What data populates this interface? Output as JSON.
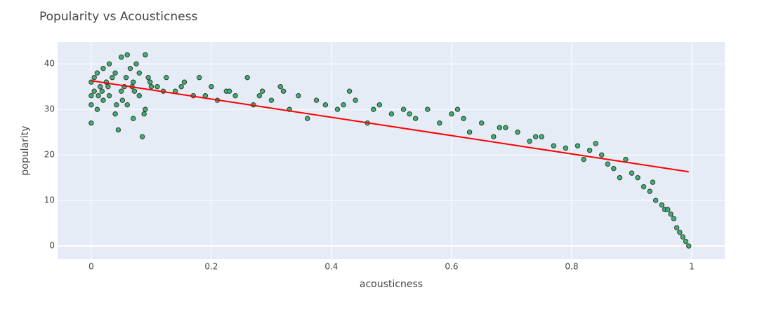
{
  "chart_data": {
    "type": "scatter",
    "title": "Popularity vs Acousticness",
    "x_label": "acousticness",
    "y_label": "popularity",
    "xlim": [
      -0.056,
      1.055
    ],
    "ylim": [
      -2.9,
      44.8
    ],
    "xticks": [
      0,
      0.2,
      0.4,
      0.6,
      0.8,
      1
    ],
    "yticks": [
      0,
      10,
      20,
      30,
      40
    ],
    "grid": true,
    "series": [
      {
        "type": "scatter",
        "color": "#3cb371",
        "x": [
          0,
          0,
          0,
          0,
          0.005,
          0.005,
          0.01,
          0.01,
          0.015,
          0.02,
          0.02,
          0.025,
          0.03,
          0.03,
          0.035,
          0.04,
          0.04,
          0.045,
          0.05,
          0.05,
          0.055,
          0.06,
          0.06,
          0.065,
          0.07,
          0.07,
          0.075,
          0.08,
          0.08,
          0.085,
          0.09,
          0.09,
          0.095,
          0.1,
          0.012,
          0.028,
          0.042,
          0.058,
          0.072,
          0.088,
          0.098,
          0.018,
          0.052,
          0.068,
          0.11,
          0.125,
          0.14,
          0.155,
          0.17,
          0.18,
          0.2,
          0.21,
          0.225,
          0.24,
          0.26,
          0.27,
          0.285,
          0.3,
          0.315,
          0.33,
          0.345,
          0.36,
          0.375,
          0.39,
          0.12,
          0.15,
          0.19,
          0.23,
          0.28,
          0.32,
          0.41,
          0.43,
          0.44,
          0.46,
          0.48,
          0.5,
          0.52,
          0.54,
          0.56,
          0.58,
          0.6,
          0.61,
          0.63,
          0.65,
          0.67,
          0.69,
          0.71,
          0.73,
          0.75,
          0.77,
          0.79,
          0.42,
          0.47,
          0.53,
          0.62,
          0.68,
          0.74,
          0.81,
          0.82,
          0.83,
          0.84,
          0.85,
          0.86,
          0.87,
          0.88,
          0.89,
          0.9,
          0.91,
          0.92,
          0.93,
          0.935,
          0.94,
          0.95,
          0.955,
          0.96,
          0.965,
          0.97,
          0.975,
          0.98,
          0.985,
          0.99,
          0.995
        ],
        "values": [
          27,
          31,
          33,
          36,
          34,
          37,
          30,
          38,
          35,
          32,
          39,
          36,
          33,
          40,
          37,
          29,
          38,
          25.5,
          41.5,
          34,
          35,
          42,
          31,
          39,
          36,
          28,
          40,
          33,
          38,
          24,
          42,
          30,
          37,
          35,
          33,
          35,
          31,
          37,
          34,
          29,
          36,
          34,
          32,
          35,
          35,
          37,
          34,
          36,
          33,
          37,
          35,
          32,
          34,
          33,
          37,
          31,
          34,
          32,
          35,
          30,
          33,
          28,
          32,
          31,
          34,
          35,
          33,
          34,
          33,
          34,
          30,
          34,
          32,
          27,
          31,
          29,
          30,
          28,
          30,
          27,
          29,
          30,
          25,
          27,
          24,
          26,
          25,
          23,
          24,
          22,
          21.5,
          31,
          30,
          29,
          28,
          26,
          24,
          22,
          19,
          21,
          22.5,
          20,
          18,
          17,
          15,
          19,
          16,
          15,
          13,
          12,
          14,
          10,
          9,
          8,
          8,
          7,
          6,
          4,
          3,
          2,
          1,
          0
        ]
      },
      {
        "type": "line",
        "color": "#ff0000",
        "x": [
          0,
          0.995
        ],
        "values": [
          36.3,
          16.3
        ]
      }
    ]
  }
}
